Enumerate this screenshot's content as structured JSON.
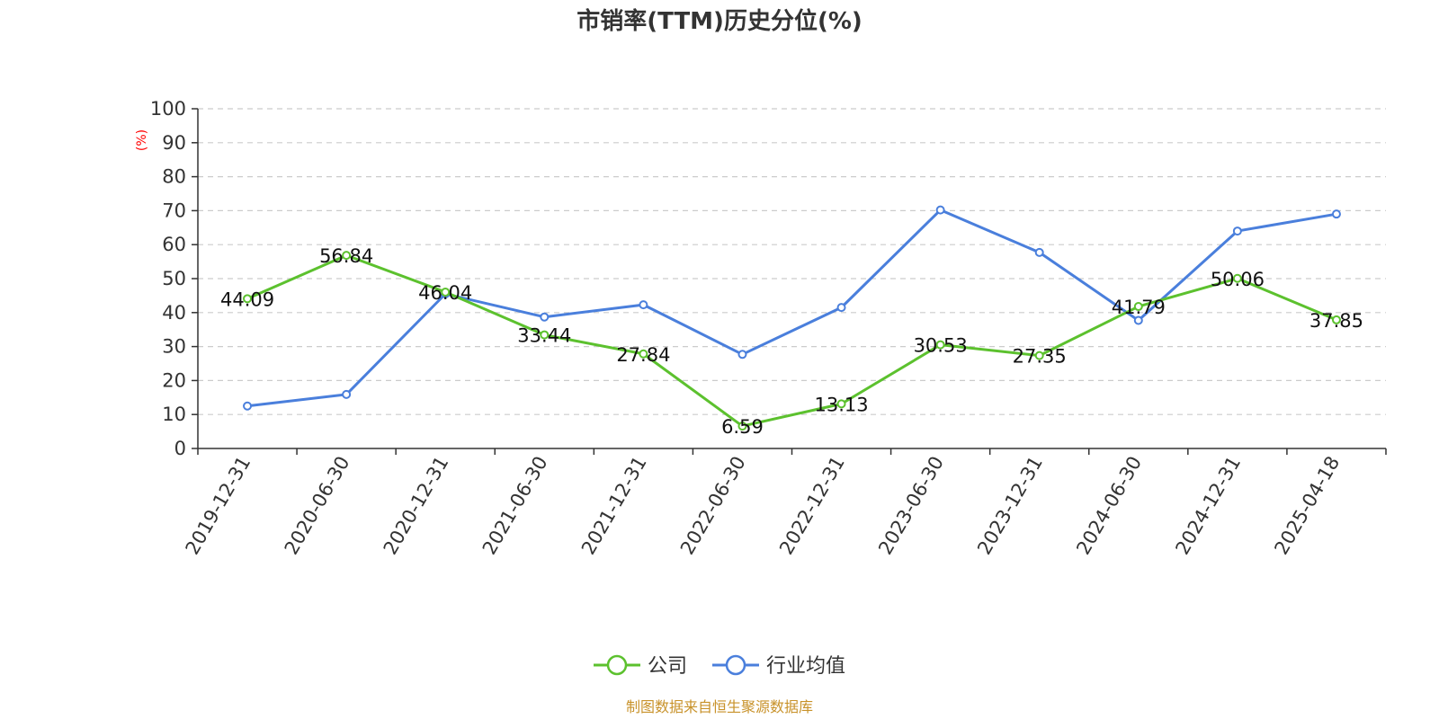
{
  "chart_data": {
    "type": "line",
    "title": "市销率(TTM)历史分位(%)",
    "ylabel": "(%)",
    "xlabel": "",
    "ylim": [
      0,
      100
    ],
    "yticks": [
      0,
      10,
      20,
      30,
      40,
      50,
      60,
      70,
      80,
      90,
      100
    ],
    "grid": true,
    "legend_position": "bottom",
    "categories": [
      "2019-12-31",
      "2020-06-30",
      "2020-12-31",
      "2021-06-30",
      "2021-12-31",
      "2022-06-30",
      "2022-12-31",
      "2023-06-30",
      "2023-12-31",
      "2024-06-30",
      "2024-12-31",
      "2025-04-18"
    ],
    "series": [
      {
        "name": "公司",
        "color": "#5cc12e",
        "values": [
          44.09,
          56.84,
          46.04,
          33.44,
          27.84,
          6.59,
          13.13,
          30.53,
          27.35,
          41.79,
          50.06,
          37.85
        ],
        "labels": [
          "44.09",
          "56.84",
          "46.04",
          "33.44",
          "27.84",
          "6.59",
          "13.13",
          "30.53",
          "27.35",
          "41.79",
          "50.06",
          "37.85"
        ]
      },
      {
        "name": "行业均值",
        "color": "#4a7fdc",
        "values": [
          12.5,
          15.9,
          45.5,
          38.7,
          42.3,
          27.7,
          41.5,
          70.2,
          57.7,
          37.7,
          64.0,
          69.0
        ]
      }
    ],
    "source": "制图数据来自恒生聚源数据库"
  }
}
